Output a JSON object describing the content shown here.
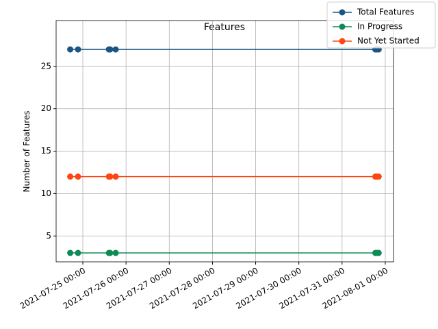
{
  "chart_data": {
    "type": "line",
    "title": "Features",
    "ylabel": "Number of Features",
    "x": [
      "2021-07-24 17:00",
      "2021-07-24 21:20",
      "2021-07-25 14:30",
      "2021-07-25 15:10",
      "2021-07-25 18:15",
      "2021-07-31 18:30",
      "2021-07-31 19:10",
      "2021-07-31 20:20"
    ],
    "series": [
      {
        "name": "Total Features",
        "color": "#1b5583",
        "values": [
          27,
          27,
          27,
          27,
          27,
          27,
          27,
          27
        ]
      },
      {
        "name": "In Progress",
        "color": "#0e8a55",
        "values": [
          3,
          3,
          3,
          3,
          3,
          3,
          3,
          3
        ]
      },
      {
        "name": "Not Yet Started",
        "color": "#ff4510",
        "values": [
          12,
          12,
          12,
          12,
          12,
          12,
          12,
          12
        ]
      }
    ],
    "xlim": [
      "2021-07-24 09:10",
      "2021-08-01 04:35"
    ],
    "xticks": [
      "2021-07-25 00:00",
      "2021-07-26 00:00",
      "2021-07-27 00:00",
      "2021-07-28 00:00",
      "2021-07-29 00:00",
      "2021-07-30 00:00",
      "2021-07-31 00:00",
      "2021-08-01 00:00"
    ],
    "ylim": [
      1.95,
      30.4
    ],
    "yticks": [
      5,
      10,
      15,
      20,
      25
    ],
    "grid": true,
    "legend": "upper right"
  }
}
